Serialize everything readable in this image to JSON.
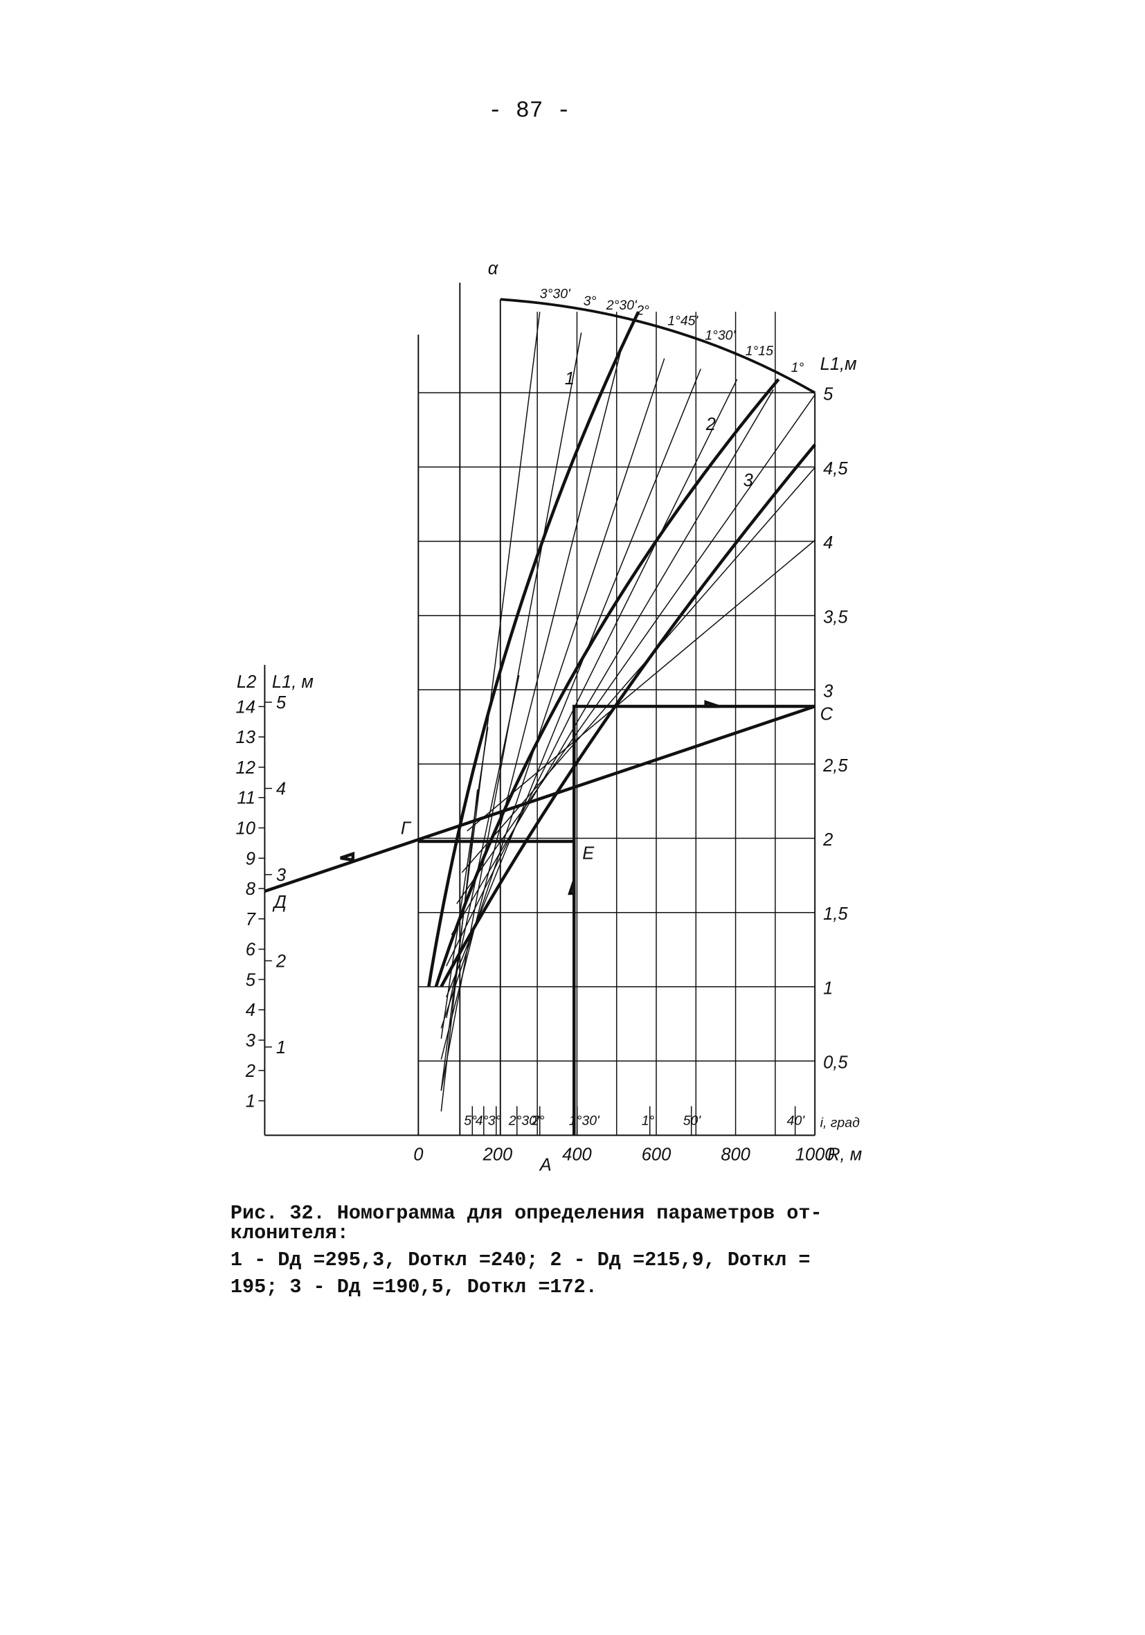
{
  "page_number": "- 87 -",
  "nomogram": {
    "alpha_label": "α",
    "top_angle_labels": [
      "3°30'",
      "3°",
      "2°30'",
      "2°",
      "1°45'",
      "1°30'",
      "1°15",
      "1°"
    ],
    "curve_labels": [
      "1",
      "2",
      "3"
    ],
    "right_axis": {
      "title": "L1,м",
      "ticks": [
        "5",
        "4,5",
        "4",
        "3,5",
        "3",
        "2,5",
        "2",
        "1,5",
        "1",
        "0,5"
      ]
    },
    "i_label": "i, град",
    "bottom_angle_labels": [
      "5°",
      "4°",
      "3°",
      "2°30'",
      "2°",
      "1°30'",
      "1°",
      "50'",
      "40'"
    ],
    "r_axis": {
      "ticks": [
        "0",
        "200",
        "400",
        "600",
        "800",
        "1000"
      ],
      "title": "R, м"
    },
    "points": {
      "c": "C",
      "g": "Г",
      "e": "E",
      "d": "Д",
      "a": "A"
    },
    "left_axis": {
      "l2_title": "L2",
      "l1_title": "L1, м",
      "l2_ticks": [
        "1",
        "2",
        "3",
        "4",
        "5",
        "6",
        "7",
        "8",
        "9",
        "10",
        "11",
        "12",
        "13",
        "14"
      ],
      "l1_ticks": [
        "1",
        "2",
        "3",
        "4",
        "5"
      ]
    }
  },
  "caption": {
    "lines": [
      "Рис. 32. Номограмма для определения параметров от-",
      "клонителя:",
      "1 - Dд =295,3, Dоткл =240; 2 - Dд =215,9, Dоткл =",
      "195; 3 - Dд =190,5, Dоткл =172."
    ]
  }
}
